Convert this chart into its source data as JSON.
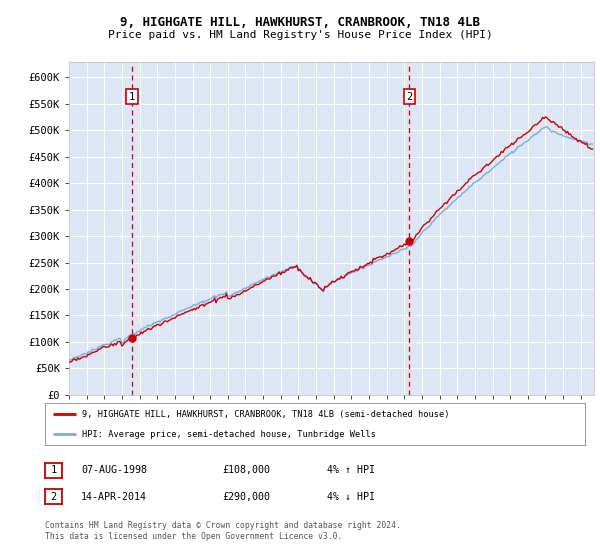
{
  "title_line1": "9, HIGHGATE HILL, HAWKHURST, CRANBROOK, TN18 4LB",
  "title_line2": "Price paid vs. HM Land Registry's House Price Index (HPI)",
  "ytick_values": [
    0,
    50000,
    100000,
    150000,
    200000,
    250000,
    300000,
    350000,
    400000,
    450000,
    500000,
    550000,
    600000
  ],
  "ylim": [
    0,
    630000
  ],
  "xlim_start": 1995.0,
  "xlim_end": 2024.75,
  "background_color": "#dce6f5",
  "grid_color": "#ffffff",
  "hpi_color": "#7aade0",
  "price_color": "#cc0000",
  "marker_color": "#cc0000",
  "sale1_x": 1998.58,
  "sale1_y": 108000,
  "sale2_x": 2014.28,
  "sale2_y": 290000,
  "dashed_color": "#cc0000",
  "legend_label_price": "9, HIGHGATE HILL, HAWKHURST, CRANBROOK, TN18 4LB (semi-detached house)",
  "legend_label_hpi": "HPI: Average price, semi-detached house, Tunbridge Wells",
  "table_row1": [
    "1",
    "07-AUG-1998",
    "£108,000",
    "4% ↑ HPI"
  ],
  "table_row2": [
    "2",
    "14-APR-2014",
    "£290,000",
    "4% ↓ HPI"
  ],
  "footer": "Contains HM Land Registry data © Crown copyright and database right 2024.\nThis data is licensed under the Open Government Licence v3.0.",
  "xtick_years": [
    1995,
    1996,
    1997,
    1998,
    1999,
    2000,
    2001,
    2002,
    2003,
    2004,
    2005,
    2006,
    2007,
    2008,
    2009,
    2010,
    2011,
    2012,
    2013,
    2014,
    2015,
    2016,
    2017,
    2018,
    2019,
    2020,
    2021,
    2022,
    2023,
    2024
  ]
}
